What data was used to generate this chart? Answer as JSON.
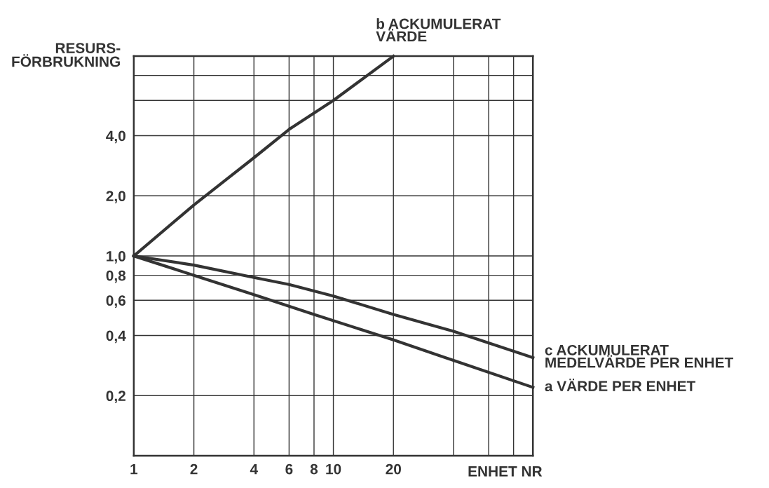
{
  "chart_data": {
    "type": "line",
    "ylabel": "RESURS-\nFÖRBRUKNING",
    "xlabel": "ENHET NR",
    "log": "xy",
    "grid": true,
    "legend": false,
    "marker": "none",
    "line_style": "solid",
    "xlim": [
      1,
      100
    ],
    "xticks": [
      1,
      2,
      4,
      6,
      8,
      10,
      20,
      {
        "value": 40,
        "label": null
      },
      {
        "value": 60,
        "label": null
      },
      {
        "value": 80,
        "label": null
      }
    ],
    "ylim": [
      0.1,
      10
    ],
    "yticks": [
      {
        "value": 0.2,
        "label": "0,2"
      },
      {
        "value": 0.4,
        "label": "0,4"
      },
      {
        "value": 0.6,
        "label": "0,6"
      },
      {
        "value": 0.8,
        "label": "0,8"
      },
      {
        "value": 1,
        "label": "1,0"
      },
      {
        "value": 2,
        "label": "2,0"
      },
      {
        "value": 4,
        "label": "4,0"
      },
      {
        "value": 6,
        "label": null
      },
      {
        "value": 8,
        "label": null
      }
    ],
    "series": [
      {
        "name": "b ACKUMULERAT\nVÄRDE",
        "color": "#333333",
        "x": [
          1,
          2,
          4,
          6,
          10,
          20
        ],
        "values": [
          1,
          1.8,
          3.1,
          4.3,
          6.0,
          10
        ]
      },
      {
        "name": "c ACKUMULERAT\nMEDELVÄRDE PER ENHET",
        "color": "#333333",
        "x": [
          1,
          2,
          4,
          6,
          10,
          20,
          40,
          100
        ],
        "values": [
          1,
          0.9,
          0.78,
          0.72,
          0.63,
          0.51,
          0.42,
          0.31
        ]
      },
      {
        "name": "a VÄRDE PER ENHET",
        "color": "#333333",
        "x": [
          1,
          2,
          4,
          8,
          20,
          40,
          100
        ],
        "values": [
          1,
          0.8,
          0.64,
          0.51,
          0.38,
          0.3,
          0.22
        ]
      }
    ]
  }
}
